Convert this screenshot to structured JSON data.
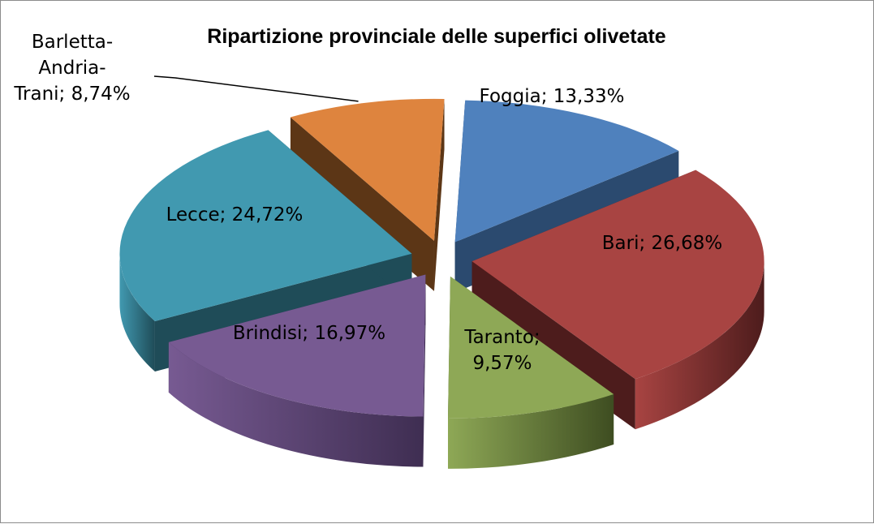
{
  "chart_data": {
    "type": "pie",
    "style": "3d-exploded",
    "title": "Ripartizione provinciale delle superfici olivetate",
    "legend": "none",
    "slices": [
      {
        "name": "Foggia",
        "value": 13.33,
        "label_lines": [
          "Foggia; 13,33%"
        ],
        "color": "#4f81bd",
        "dark": "#2b4a6f"
      },
      {
        "name": "Bari",
        "value": 26.68,
        "label_lines": [
          "Bari; 26,68%"
        ],
        "color": "#a84442",
        "dark": "#4d1c1c"
      },
      {
        "name": "Taranto",
        "value": 9.57,
        "label_lines": [
          "Taranto;",
          "9,57%"
        ],
        "color": "#8ea856",
        "dark": "#3e4d21"
      },
      {
        "name": "Brindisi",
        "value": 16.97,
        "label_lines": [
          "Brindisi; 16,97%"
        ],
        "color": "#775a92",
        "dark": "#3f2e52"
      },
      {
        "name": "Lecce",
        "value": 24.72,
        "label_lines": [
          "Lecce; 24,72%"
        ],
        "color": "#4199b0",
        "dark": "#1f4c58"
      },
      {
        "name": "Barletta-Andria-Trani",
        "value": 8.74,
        "label_lines": [
          "Barletta-",
          "Andria-",
          "Trani; 8,74%"
        ],
        "color": "#de843e",
        "dark": "#5c3616"
      }
    ]
  }
}
